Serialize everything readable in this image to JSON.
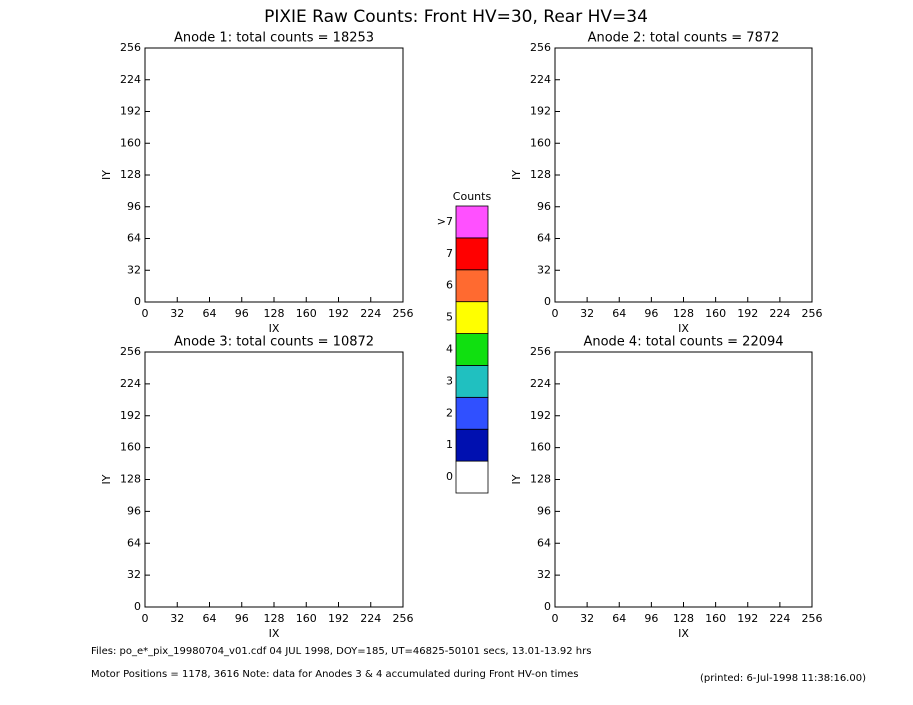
{
  "title": "PIXIE Raw Counts:  Front HV=30, Rear HV=34",
  "chart_data": [
    {
      "type": "heatmap",
      "title": "Anode 1: total counts = 18253",
      "xlabel": "IX",
      "ylabel": "IY",
      "xlim": [
        0,
        256
      ],
      "ylim": [
        0,
        256
      ],
      "xticks": [
        0,
        32,
        64,
        96,
        128,
        160,
        192,
        224,
        256
      ],
      "yticks": [
        0,
        32,
        64,
        96,
        128,
        160,
        192,
        224,
        256
      ]
    },
    {
      "type": "heatmap",
      "title": "Anode 2: total counts = 7872",
      "xlabel": "IX",
      "ylabel": "IY",
      "xlim": [
        0,
        256
      ],
      "ylim": [
        0,
        256
      ],
      "xticks": [
        0,
        32,
        64,
        96,
        128,
        160,
        192,
        224,
        256
      ],
      "yticks": [
        0,
        32,
        64,
        96,
        128,
        160,
        192,
        224,
        256
      ]
    },
    {
      "type": "heatmap",
      "title": "Anode 3: total counts = 10872",
      "xlabel": "IX",
      "ylabel": "IY",
      "xlim": [
        0,
        256
      ],
      "ylim": [
        0,
        256
      ],
      "xticks": [
        0,
        32,
        64,
        96,
        128,
        160,
        192,
        224,
        256
      ],
      "yticks": [
        0,
        32,
        64,
        96,
        128,
        160,
        192,
        224,
        256
      ]
    },
    {
      "type": "heatmap",
      "title": "Anode 4: total counts = 22094",
      "xlabel": "IX",
      "ylabel": "IY",
      "xlim": [
        0,
        256
      ],
      "ylim": [
        0,
        256
      ],
      "xticks": [
        0,
        32,
        64,
        96,
        128,
        160,
        192,
        224,
        256
      ],
      "yticks": [
        0,
        32,
        64,
        96,
        128,
        160,
        192,
        224,
        256
      ]
    }
  ],
  "colorbar": {
    "title": "Counts",
    "labels": [
      0,
      1,
      2,
      3,
      4,
      5,
      6,
      7,
      ">7"
    ],
    "colors": [
      "#ffffff",
      "#0010b0",
      "#3050ff",
      "#20c0c0",
      "#10e010",
      "#ffff00",
      "#ff6a30",
      "#ff0000",
      "#ff50ff"
    ]
  },
  "footer": {
    "files": "Files: po_e*_pix_19980704_v01.cdf     04 JUL 1998, DOY=185, UT=46825-50101 secs, 13.01-13.92 hrs",
    "motor": "Motor Positions = 1178, 3616   Note: data for Anodes 3 & 4 accumulated during Front HV-on times",
    "printed": "(printed:  6-Jul-1998 11:38:16.00)"
  }
}
